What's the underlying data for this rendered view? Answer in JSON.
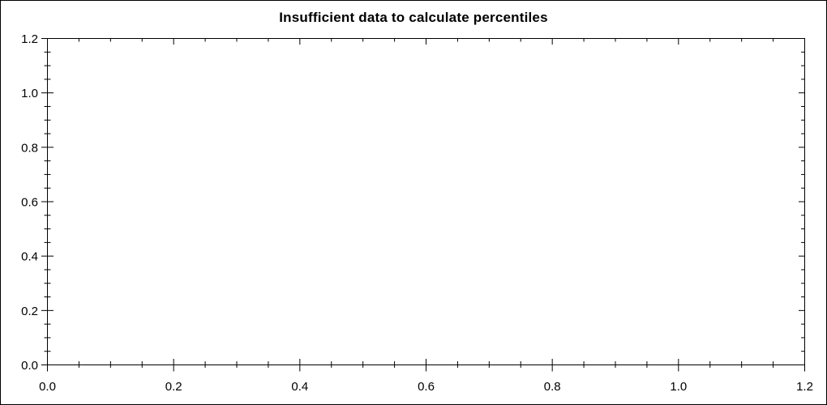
{
  "chart_data": {
    "type": "line",
    "title": "Insufficient data to calculate percentiles",
    "series": [],
    "xlabel": "",
    "ylabel": "",
    "xlim": [
      0,
      1.2
    ],
    "ylim": [
      0,
      1.2
    ],
    "x_ticks": [
      0,
      0.2,
      0.4,
      0.6,
      0.8,
      1.0,
      1.2
    ],
    "x_tick_labels": [
      "0.0",
      "0.2",
      "0.4",
      "0.6",
      "0.8",
      "1.0",
      "1.2"
    ],
    "y_ticks": [
      0,
      0.2,
      0.4,
      0.6,
      0.8,
      1.0,
      1.2
    ],
    "y_tick_labels": [
      "0.0",
      "0.2",
      "0.4",
      "0.6",
      "0.8",
      "1.0",
      "1.2"
    ],
    "minor_tick_step": 0.05,
    "grid": false,
    "legend": "none",
    "frame": "box",
    "plot_area_empty": true,
    "colors": {
      "axis": "#000000",
      "tick_label": "#000000",
      "title": "#000000",
      "background": "#ffffff",
      "border": "#000000"
    }
  }
}
